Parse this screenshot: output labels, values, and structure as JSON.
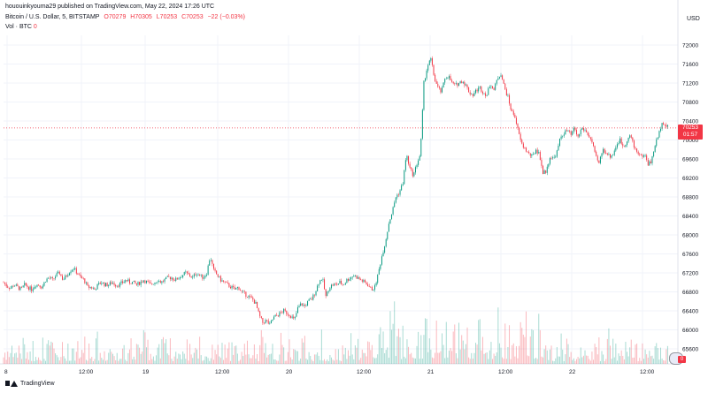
{
  "header": {
    "published_text": "hououinkyouma29 published on TradingView.com, May 22, 2024 17:26 UTC"
  },
  "symbol": {
    "name": "Bitcoin / U.S. Dollar, 5, BITSTAMP",
    "open": "O70279",
    "high": "H70305",
    "low": "L70253",
    "close": "C70253",
    "change": "−22 (−0.03%)"
  },
  "volume_label": {
    "name": "Vol · BTC",
    "value": "0"
  },
  "currency": "USD",
  "last_price": {
    "price": "70253",
    "countdown": "01:57"
  },
  "volume_tag": "0",
  "footer": {
    "brand": "TradingView"
  },
  "colors": {
    "up": "#089981",
    "down": "#f23645",
    "grid": "#f0f3fa",
    "text": "#131722"
  },
  "chart_data": {
    "type": "candlestick",
    "timeframe": "5",
    "x_tick_labels": [
      "8",
      "12:00",
      "19",
      "12:00",
      "20",
      "12:00",
      "21",
      "12:00",
      "22",
      "12:00"
    ],
    "y_tick_labels": [
      "65600",
      "66000",
      "66400",
      "66800",
      "67200",
      "67600",
      "68000",
      "68400",
      "68800",
      "69200",
      "69600",
      "70000",
      "70400",
      "70800",
      "71200",
      "71600",
      "72000"
    ],
    "ylim": [
      65400,
      72200
    ],
    "last_price": 70253,
    "price_path": [
      [
        0,
        67000
      ],
      [
        4,
        66920
      ],
      [
        8,
        66880
      ],
      [
        12,
        66950
      ],
      [
        16,
        66900
      ],
      [
        20,
        66850
      ],
      [
        24,
        66950
      ],
      [
        28,
        66900
      ],
      [
        32,
        66850
      ],
      [
        36,
        66950
      ],
      [
        40,
        66950
      ],
      [
        44,
        66900
      ],
      [
        48,
        67050
      ],
      [
        52,
        67100
      ],
      [
        56,
        67050
      ],
      [
        60,
        67150
      ],
      [
        64,
        67200
      ],
      [
        68,
        67050
      ],
      [
        72,
        67150
      ],
      [
        76,
        67250
      ],
      [
        80,
        67300
      ],
      [
        84,
        67200
      ],
      [
        88,
        67100
      ],
      [
        92,
        67050
      ],
      [
        96,
        66900
      ],
      [
        100,
        66900
      ],
      [
        104,
        66850
      ],
      [
        108,
        66950
      ],
      [
        112,
        67000
      ],
      [
        116,
        66950
      ],
      [
        120,
        66950
      ],
      [
        124,
        67000
      ],
      [
        128,
        66950
      ],
      [
        132,
        66950
      ],
      [
        136,
        67000
      ],
      [
        140,
        67050
      ],
      [
        144,
        67000
      ],
      [
        148,
        67000
      ],
      [
        152,
        66950
      ],
      [
        156,
        67000
      ],
      [
        160,
        67050
      ],
      [
        164,
        67000
      ],
      [
        168,
        66950
      ],
      [
        172,
        67000
      ],
      [
        176,
        67050
      ],
      [
        180,
        67000
      ],
      [
        184,
        67050
      ],
      [
        188,
        67100
      ],
      [
        192,
        67100
      ],
      [
        196,
        67050
      ],
      [
        200,
        67100
      ],
      [
        204,
        67150
      ],
      [
        208,
        67200
      ],
      [
        212,
        67150
      ],
      [
        216,
        67100
      ],
      [
        220,
        67200
      ],
      [
        224,
        67150
      ],
      [
        228,
        67100
      ],
      [
        232,
        67200
      ],
      [
        236,
        67550
      ],
      [
        240,
        67250
      ],
      [
        244,
        67150
      ],
      [
        248,
        67050
      ],
      [
        252,
        67000
      ],
      [
        256,
        66950
      ],
      [
        260,
        66900
      ],
      [
        264,
        66850
      ],
      [
        268,
        66900
      ],
      [
        272,
        66800
      ],
      [
        276,
        66750
      ],
      [
        280,
        66700
      ],
      [
        284,
        66650
      ],
      [
        288,
        66550
      ],
      [
        292,
        66300
      ],
      [
        296,
        66150
      ],
      [
        300,
        66200
      ],
      [
        304,
        66100
      ],
      [
        308,
        66250
      ],
      [
        312,
        66300
      ],
      [
        316,
        66350
      ],
      [
        320,
        66400
      ],
      [
        324,
        66350
      ],
      [
        328,
        66300
      ],
      [
        332,
        66200
      ],
      [
        336,
        66450
      ],
      [
        340,
        66550
      ],
      [
        344,
        66500
      ],
      [
        348,
        66600
      ],
      [
        352,
        66650
      ],
      [
        356,
        66800
      ],
      [
        360,
        67000
      ],
      [
        364,
        67100
      ],
      [
        368,
        66700
      ],
      [
        372,
        66900
      ],
      [
        376,
        66950
      ],
      [
        380,
        66950
      ],
      [
        384,
        67000
      ],
      [
        388,
        66950
      ],
      [
        392,
        67050
      ],
      [
        396,
        67100
      ],
      [
        400,
        67150
      ],
      [
        404,
        67100
      ],
      [
        408,
        67050
      ],
      [
        412,
        67000
      ],
      [
        416,
        66950
      ],
      [
        420,
        66850
      ],
      [
        424,
        66900
      ],
      [
        428,
        67200
      ],
      [
        432,
        67550
      ],
      [
        436,
        67850
      ],
      [
        440,
        68250
      ],
      [
        444,
        68500
      ],
      [
        448,
        68800
      ],
      [
        452,
        68900
      ],
      [
        456,
        69100
      ],
      [
        460,
        69700
      ],
      [
        464,
        69400
      ],
      [
        468,
        69250
      ],
      [
        472,
        69500
      ],
      [
        476,
        69700
      ],
      [
        480,
        71200
      ],
      [
        484,
        71550
      ],
      [
        488,
        71700
      ],
      [
        492,
        71300
      ],
      [
        496,
        71100
      ],
      [
        500,
        71000
      ],
      [
        504,
        71300
      ],
      [
        508,
        71350
      ],
      [
        512,
        71200
      ],
      [
        516,
        71150
      ],
      [
        520,
        71200
      ],
      [
        524,
        71250
      ],
      [
        528,
        71150
      ],
      [
        532,
        71000
      ],
      [
        536,
        70950
      ],
      [
        540,
        71050
      ],
      [
        544,
        71100
      ],
      [
        548,
        71000
      ],
      [
        552,
        70950
      ],
      [
        556,
        71200
      ],
      [
        560,
        71050
      ],
      [
        564,
        71300
      ],
      [
        568,
        71400
      ],
      [
        572,
        71100
      ],
      [
        576,
        70900
      ],
      [
        580,
        70600
      ],
      [
        584,
        70500
      ],
      [
        588,
        70150
      ],
      [
        592,
        69900
      ],
      [
        596,
        69800
      ],
      [
        600,
        69700
      ],
      [
        604,
        69650
      ],
      [
        608,
        69800
      ],
      [
        612,
        69700
      ],
      [
        616,
        69300
      ],
      [
        620,
        69350
      ],
      [
        624,
        69650
      ],
      [
        628,
        69600
      ],
      [
        632,
        69750
      ],
      [
        636,
        70050
      ],
      [
        640,
        70150
      ],
      [
        644,
        70200
      ],
      [
        648,
        70100
      ],
      [
        652,
        70250
      ],
      [
        656,
        70050
      ],
      [
        660,
        70250
      ],
      [
        664,
        70200
      ],
      [
        668,
        70100
      ],
      [
        672,
        69950
      ],
      [
        676,
        69650
      ],
      [
        680,
        69500
      ],
      [
        684,
        69800
      ],
      [
        688,
        69750
      ],
      [
        692,
        69650
      ],
      [
        696,
        69700
      ],
      [
        700,
        69900
      ],
      [
        704,
        70000
      ],
      [
        708,
        69850
      ],
      [
        712,
        70000
      ],
      [
        716,
        70100
      ],
      [
        720,
        69850
      ],
      [
        724,
        69750
      ],
      [
        728,
        69650
      ],
      [
        732,
        69700
      ],
      [
        736,
        69500
      ],
      [
        740,
        69550
      ],
      [
        744,
        69900
      ],
      [
        748,
        70100
      ],
      [
        752,
        70400
      ],
      [
        756,
        70300
      ],
      [
        760,
        70253
      ]
    ]
  }
}
